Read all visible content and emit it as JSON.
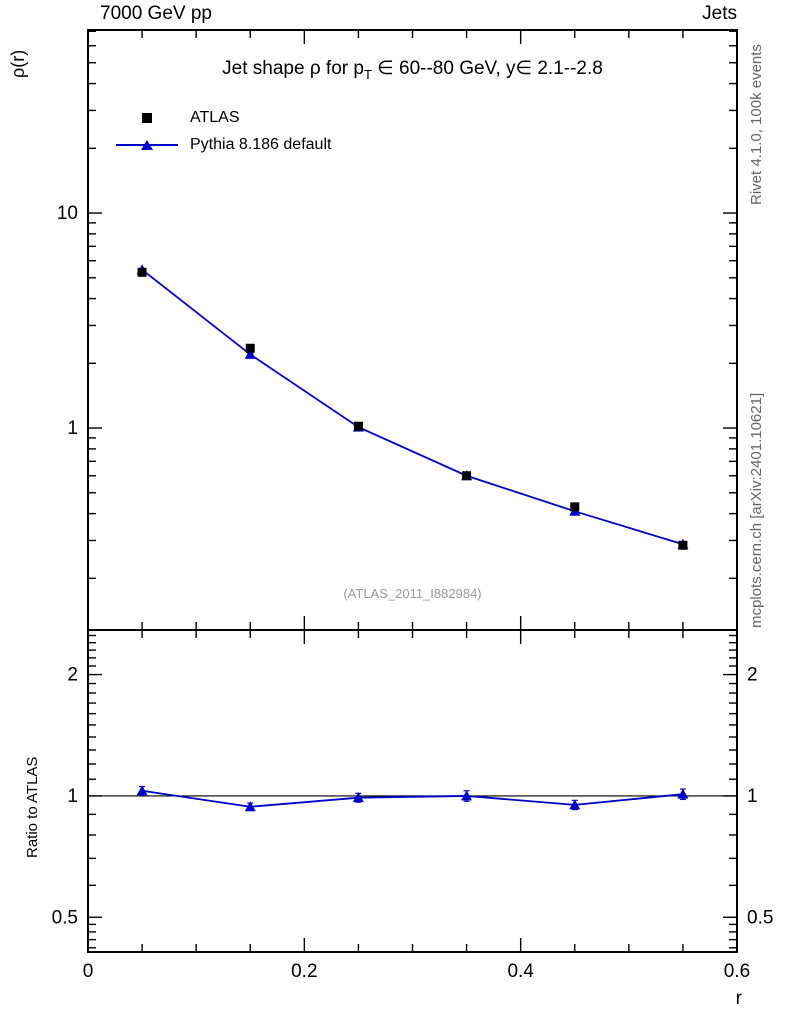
{
  "meta": {
    "header_left": "7000 GeV pp",
    "header_right": "Jets",
    "title": {
      "prefix": "Jet shape ρ for p",
      "sub": "T",
      "suffix": " ∈ 60--80 GeV, y∈ 2.1--2.8"
    },
    "watermark": "(ATLAS_2011_I882984)",
    "right_top": "Rivet 4.1.0,  100k events",
    "right_bottom": "mcplots.cern.ch [arXiv:2401.10621]"
  },
  "legend": [
    {
      "label": "ATLAS",
      "marker": "square",
      "color": "#000000",
      "line": false
    },
    {
      "label": "Pythia 8.186 default",
      "marker": "triangle",
      "color": "#0000cc",
      "line": true
    }
  ],
  "chart_data": {
    "type": "line",
    "title": "Jet shape ρ for p_T ∈ 60--80 GeV, y ∈ 2.1--2.8",
    "xlabel": "r",
    "ylabel": "ρ(r)",
    "xlim": [
      0,
      0.6
    ],
    "xticks": [
      0,
      0.2,
      0.4,
      0.6
    ],
    "x_minor_step": 0.05,
    "yscale": "log",
    "ylim": [
      0.115,
      71
    ],
    "yticks": [
      10,
      1
    ],
    "x": [
      0.05,
      0.15,
      0.25,
      0.35,
      0.45,
      0.55
    ],
    "series": [
      {
        "name": "ATLAS",
        "marker": "square",
        "color": "#000000",
        "values": [
          5.3,
          2.35,
          1.02,
          0.6,
          0.43,
          0.285
        ],
        "errors": [
          0.15,
          0.07,
          0.03,
          0.02,
          0.015,
          0.01
        ]
      },
      {
        "name": "Pythia 8.186 default",
        "marker": "triangle",
        "color": "#0000cc",
        "line": true,
        "values": [
          5.45,
          2.2,
          1.01,
          0.6,
          0.41,
          0.288
        ],
        "errors": [
          0.06,
          0.03,
          0.015,
          0.01,
          0.008,
          0.006
        ]
      }
    ],
    "ratio_panel": {
      "ylabel": "Ratio to ATLAS",
      "yscale": "log",
      "ylim": [
        0.41,
        2.58
      ],
      "yticks": [
        2,
        1,
        0.5
      ],
      "reference": 1,
      "series": [
        {
          "name": "Pythia 8.186 default",
          "marker": "triangle",
          "color": "#0000cc",
          "line": true,
          "values": [
            1.03,
            0.94,
            0.99,
            1.0,
            0.95,
            1.01
          ],
          "errors": [
            0.025,
            0.02,
            0.025,
            0.03,
            0.025,
            0.03
          ]
        }
      ]
    }
  }
}
